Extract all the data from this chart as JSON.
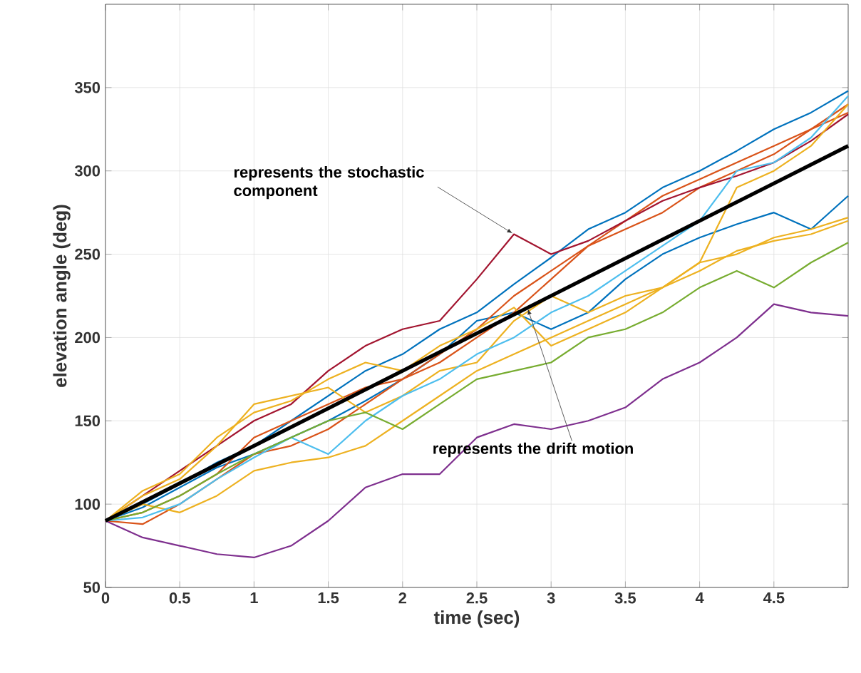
{
  "chart_data": {
    "type": "line",
    "xlabel": "time (sec)",
    "ylabel": "elevation angle (deg)",
    "x": [
      0,
      0.25,
      0.5,
      0.75,
      1,
      1.25,
      1.5,
      1.75,
      2,
      2.25,
      2.5,
      2.75,
      3,
      3.25,
      3.5,
      3.75,
      4,
      4.25,
      4.5,
      4.75,
      5
    ],
    "xlim": [
      0,
      5
    ],
    "xticks": [
      0,
      0.5,
      1,
      1.5,
      2,
      2.5,
      3,
      3.5,
      4,
      4.5
    ],
    "ylim": [
      50,
      400
    ],
    "yticks": [
      50,
      100,
      150,
      200,
      250,
      300,
      350
    ],
    "grid": true,
    "marker": "none",
    "line_style": "solid",
    "series": [
      {
        "color": "#0072bd",
        "values": [
          90,
          100,
          112,
          125,
          135,
          150,
          165,
          180,
          190,
          205,
          215,
          232,
          248,
          265,
          275,
          290,
          300,
          312,
          325,
          335,
          348
        ]
      },
      {
        "color": "#0072bd",
        "values": [
          90,
          98,
          110,
          122,
          130,
          140,
          150,
          162,
          175,
          190,
          210,
          215,
          205,
          215,
          235,
          250,
          260,
          268,
          275,
          265,
          285
        ]
      },
      {
        "color": "#d95319",
        "values": [
          90,
          95,
          105,
          118,
          140,
          150,
          160,
          170,
          175,
          190,
          205,
          225,
          240,
          255,
          270,
          285,
          295,
          305,
          315,
          325,
          340
        ]
      },
      {
        "color": "#d95319",
        "values": [
          90,
          88,
          100,
          115,
          130,
          135,
          145,
          160,
          175,
          185,
          200,
          215,
          235,
          255,
          265,
          275,
          290,
          300,
          310,
          325,
          335
        ]
      },
      {
        "color": "#a2142f",
        "values": [
          90,
          105,
          120,
          135,
          150,
          160,
          180,
          195,
          205,
          210,
          235,
          262,
          250,
          258,
          270,
          282,
          290,
          297,
          305,
          318,
          334
        ]
      },
      {
        "color": "#edb120",
        "values": [
          90,
          105,
          115,
          135,
          160,
          165,
          170,
          155,
          165,
          180,
          185,
          210,
          225,
          215,
          225,
          230,
          245,
          290,
          300,
          315,
          340
        ]
      },
      {
        "color": "#edb120",
        "values": [
          90,
          100,
          95,
          105,
          120,
          125,
          128,
          135,
          150,
          165,
          180,
          190,
          200,
          210,
          220,
          230,
          245,
          250,
          260,
          265,
          272
        ]
      },
      {
        "color": "#edb120",
        "values": [
          90,
          108,
          118,
          140,
          155,
          162,
          175,
          185,
          180,
          195,
          205,
          218,
          195,
          205,
          215,
          230,
          240,
          252,
          258,
          262,
          270
        ]
      },
      {
        "color": "#4dbeee",
        "values": [
          90,
          92,
          100,
          115,
          128,
          140,
          130,
          150,
          165,
          175,
          190,
          200,
          215,
          225,
          240,
          255,
          270,
          300,
          305,
          320,
          345
        ]
      },
      {
        "color": "#77ac30",
        "values": [
          90,
          95,
          105,
          118,
          130,
          140,
          150,
          155,
          145,
          160,
          175,
          180,
          185,
          200,
          205,
          215,
          230,
          240,
          230,
          245,
          257
        ]
      },
      {
        "color": "#7e2f8e",
        "values": [
          90,
          80,
          75,
          70,
          68,
          75,
          90,
          110,
          118,
          118,
          140,
          148,
          145,
          150,
          158,
          175,
          185,
          200,
          220,
          215,
          213
        ]
      },
      {
        "color": "#000000",
        "x": [
          0,
          5
        ],
        "values": [
          90,
          315
        ]
      }
    ],
    "annotations": [
      {
        "text": "represents the stochastic component",
        "x": 2.75,
        "y": 262
      },
      {
        "text": "represents the drift motion",
        "x": 2.84,
        "y": 218
      }
    ]
  }
}
